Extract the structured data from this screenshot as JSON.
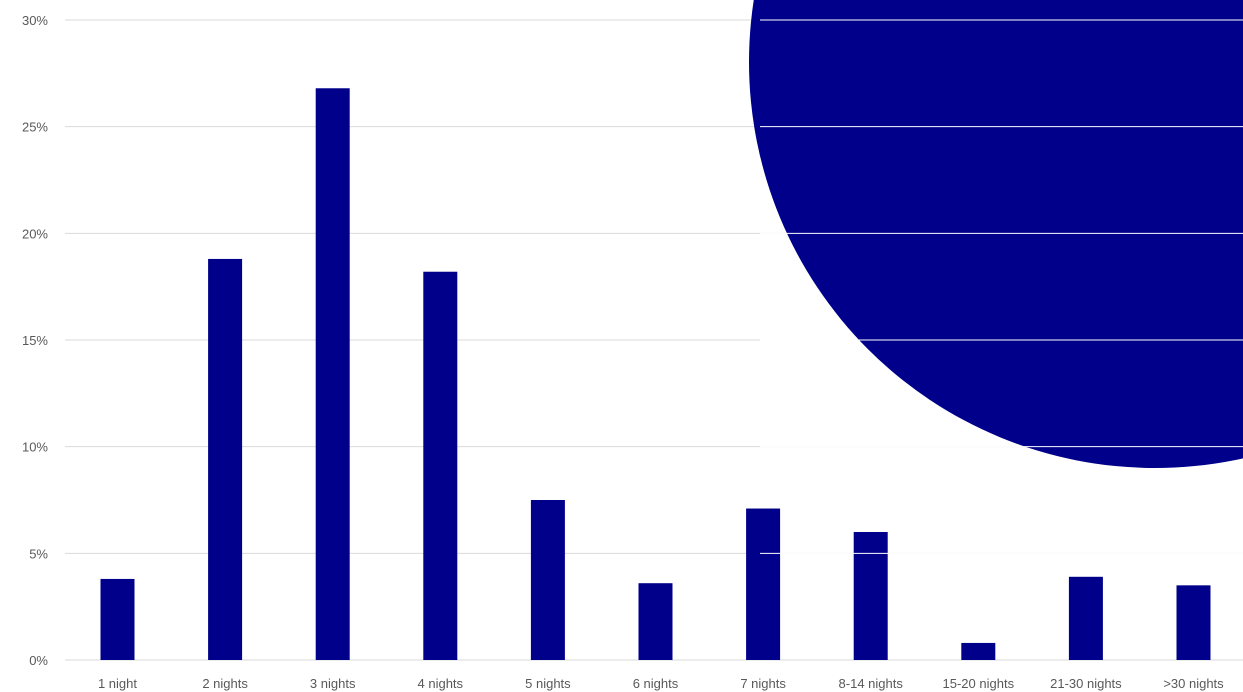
{
  "chart_data": {
    "type": "bar",
    "title": "",
    "xlabel": "",
    "ylabel": "",
    "categories": [
      "1 night",
      "2 nights",
      "3 nights",
      "4 nights",
      "5 nights",
      "6 nights",
      "7 nights",
      "8-14 nights",
      "15-20 nights",
      "21-30 nights",
      ">30 nights"
    ],
    "values": [
      3.8,
      18.8,
      26.8,
      18.2,
      7.5,
      3.6,
      7.1,
      6.0,
      0.8,
      3.9,
      3.5
    ],
    "value_unit": "%",
    "ylim": [
      0,
      30
    ],
    "y_ticks": [
      "0%",
      "5%",
      "10%",
      "15%",
      "20%",
      "25%",
      "30%"
    ],
    "grid": true,
    "legend": "none",
    "bar_color": "#00008b",
    "decoration": {
      "shape": "circle",
      "color": "#00008b",
      "position": "top-right"
    }
  }
}
